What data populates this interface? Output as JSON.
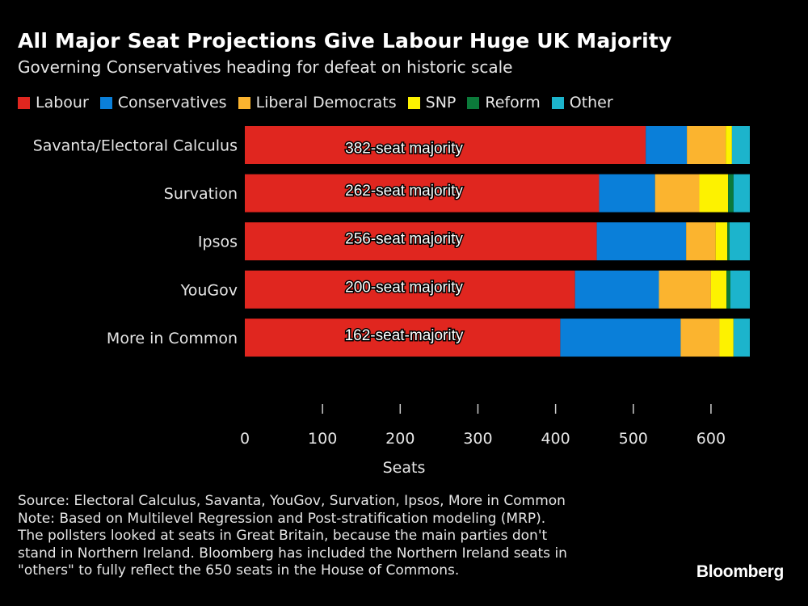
{
  "chart_data": {
    "type": "bar",
    "orientation": "horizontal",
    "stacked": true,
    "title": "All Major Seat Projections Give Labour Huge UK Majority",
    "subtitle": "Governing Conservatives heading for defeat on historic scale",
    "xlabel": "Seats",
    "xlim": [
      0,
      650
    ],
    "xticks": [
      0,
      100,
      200,
      300,
      400,
      500,
      600
    ],
    "grid": false,
    "legend_position": "top-left",
    "categories": [
      "Savanta/Electoral Calculus",
      "Survation",
      "Ipsos",
      "YouGov",
      "More in Common"
    ],
    "series": [
      {
        "name": "Labour",
        "color": "#e0261f",
        "values": [
          516,
          456,
          453,
          425,
          406
        ]
      },
      {
        "name": "Conservatives",
        "color": "#0a7fd9",
        "values": [
          53,
          72,
          115,
          108,
          155
        ]
      },
      {
        "name": "Liberal Democrats",
        "color": "#fbb42f",
        "values": [
          50,
          57,
          38,
          67,
          50
        ]
      },
      {
        "name": "SNP",
        "color": "#fdf200",
        "values": [
          8,
          37,
          15,
          20,
          18
        ]
      },
      {
        "name": "Reform",
        "color": "#0b7a3a",
        "values": [
          0,
          7,
          3,
          5,
          0
        ]
      },
      {
        "name": "Other",
        "color": "#1cb4cc",
        "values": [
          23,
          21,
          26,
          25,
          21
        ]
      }
    ],
    "annotations": [
      "382-seat majority",
      "262-seat majority",
      "256-seat majority",
      "200-seat majority",
      "162-seat-majority"
    ]
  },
  "notes": [
    "Source: Electoral Calculus, Savanta, YouGov, Survation, Ipsos, More in Common",
    "Note: Based on Multilevel Regression and Post-stratification modeling (MRP).",
    "The pollsters looked at seats in Great Britain, because the main parties don't",
    "stand in Northern Ireland. Bloomberg has included the Northern Ireland seats in",
    "\"others\" to fully reflect the 650 seats in the House of Commons."
  ],
  "logo": "Bloomberg"
}
